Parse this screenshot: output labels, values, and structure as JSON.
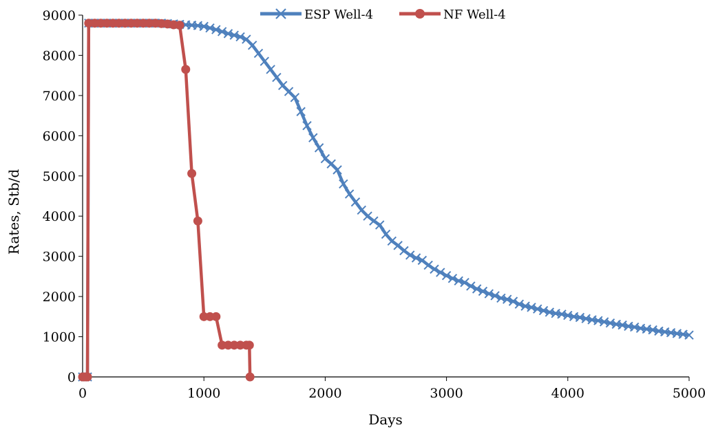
{
  "chart_data": {
    "type": "line",
    "title": "",
    "xlabel": "Days",
    "ylabel": "Rates, Stb/d",
    "xlim": [
      0,
      5000
    ],
    "ylim": [
      0,
      9000
    ],
    "x_ticks": [
      0,
      1000,
      2000,
      3000,
      4000,
      5000
    ],
    "y_ticks": [
      0,
      1000,
      2000,
      3000,
      4000,
      5000,
      6000,
      7000,
      8000,
      9000
    ],
    "grid": false,
    "legend_position": "top",
    "series": [
      {
        "name": "ESP Well-4",
        "color": "#4f81bd",
        "marker": "x",
        "x": [
          0,
          20,
          40,
          50,
          100,
          150,
          200,
          250,
          300,
          350,
          400,
          450,
          500,
          550,
          600,
          650,
          700,
          750,
          800,
          850,
          900,
          950,
          1000,
          1050,
          1100,
          1150,
          1200,
          1250,
          1300,
          1350,
          1400,
          1450,
          1500,
          1550,
          1600,
          1650,
          1700,
          1750,
          1800,
          1850,
          1900,
          1950,
          2000,
          2050,
          2100,
          2150,
          2200,
          2250,
          2300,
          2350,
          2400,
          2450,
          2500,
          2550,
          2600,
          2650,
          2700,
          2750,
          2800,
          2850,
          2900,
          2950,
          3000,
          3050,
          3100,
          3150,
          3200,
          3250,
          3300,
          3350,
          3400,
          3450,
          3500,
          3550,
          3600,
          3650,
          3700,
          3750,
          3800,
          3850,
          3900,
          3950,
          4000,
          4050,
          4100,
          4150,
          4200,
          4250,
          4300,
          4350,
          4400,
          4450,
          4500,
          4550,
          4600,
          4650,
          4700,
          4750,
          4800,
          4850,
          4900,
          4950,
          5000
        ],
        "y": [
          0,
          0,
          0,
          8800,
          8800,
          8800,
          8800,
          8800,
          8800,
          8800,
          8800,
          8800,
          8800,
          8800,
          8800,
          8800,
          8790,
          8780,
          8770,
          8760,
          8750,
          8740,
          8720,
          8680,
          8640,
          8590,
          8540,
          8500,
          8460,
          8400,
          8250,
          8050,
          7850,
          7650,
          7450,
          7250,
          7100,
          6950,
          6600,
          6250,
          5950,
          5700,
          5430,
          5300,
          5150,
          4800,
          4550,
          4350,
          4150,
          4000,
          3880,
          3780,
          3550,
          3380,
          3270,
          3140,
          3030,
          2960,
          2900,
          2780,
          2680,
          2600,
          2520,
          2450,
          2390,
          2350,
          2260,
          2190,
          2130,
          2070,
          2020,
          1960,
          1930,
          1880,
          1810,
          1760,
          1730,
          1690,
          1650,
          1610,
          1580,
          1560,
          1530,
          1500,
          1480,
          1450,
          1420,
          1400,
          1370,
          1340,
          1310,
          1290,
          1260,
          1240,
          1210,
          1190,
          1170,
          1140,
          1120,
          1100,
          1080,
          1060,
          1040
        ]
      },
      {
        "name": "NF Well-4",
        "color": "#c0504d",
        "marker": "circle",
        "x": [
          0,
          20,
          40,
          50,
          100,
          150,
          200,
          250,
          300,
          350,
          400,
          450,
          500,
          550,
          600,
          650,
          700,
          750,
          800,
          850,
          900,
          950,
          1000,
          1050,
          1100,
          1150,
          1200,
          1250,
          1300,
          1350,
          1375,
          1380
        ],
        "y": [
          0,
          0,
          0,
          8800,
          8800,
          8800,
          8800,
          8800,
          8800,
          8800,
          8800,
          8800,
          8800,
          8800,
          8800,
          8790,
          8780,
          8760,
          8750,
          7650,
          5060,
          3880,
          1500,
          1500,
          1500,
          790,
          790,
          790,
          790,
          790,
          790,
          0
        ]
      }
    ]
  }
}
